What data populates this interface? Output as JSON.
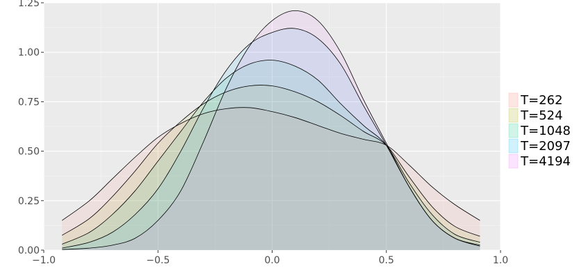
{
  "chart_data": {
    "type": "area",
    "title": "",
    "xlabel": "",
    "ylabel": "",
    "xlim": [
      -1.0,
      1.0
    ],
    "ylim": [
      0.0,
      1.25
    ],
    "x_ticks": [
      -1.0,
      -0.5,
      0.0,
      0.5,
      1.0
    ],
    "x_tick_labels": [
      "−1.0",
      "−0.5",
      "0.0",
      "0.5",
      "1.0"
    ],
    "y_ticks": [
      0.0,
      0.25,
      0.5,
      0.75,
      1.0,
      1.25
    ],
    "y_tick_labels": [
      "0.00",
      "0.25",
      "0.50",
      "0.75",
      "1.00",
      "1.25"
    ],
    "grid": true,
    "legend_position": "right",
    "x": [
      -0.92,
      -0.8,
      -0.7,
      -0.6,
      -0.5,
      -0.4,
      -0.3,
      -0.2,
      -0.1,
      0.0,
      0.1,
      0.2,
      0.3,
      0.4,
      0.5,
      0.6,
      0.7,
      0.8,
      0.91
    ],
    "series": [
      {
        "name": "T=262",
        "color": "#F8766D",
        "values": [
          0.15,
          0.25,
          0.36,
          0.47,
          0.57,
          0.64,
          0.69,
          0.715,
          0.72,
          0.7,
          0.67,
          0.63,
          0.59,
          0.56,
          0.53,
          0.43,
          0.32,
          0.23,
          0.15
        ]
      },
      {
        "name": "T=524",
        "color": "#A3A500",
        "values": [
          0.075,
          0.16,
          0.27,
          0.4,
          0.54,
          0.65,
          0.74,
          0.8,
          0.83,
          0.83,
          0.8,
          0.75,
          0.68,
          0.6,
          0.53,
          0.37,
          0.22,
          0.12,
          0.07
        ]
      },
      {
        "name": "T=1048",
        "color": "#00BF7D",
        "values": [
          0.03,
          0.09,
          0.18,
          0.3,
          0.45,
          0.6,
          0.75,
          0.87,
          0.94,
          0.96,
          0.93,
          0.86,
          0.74,
          0.63,
          0.53,
          0.34,
          0.18,
          0.08,
          0.04
        ]
      },
      {
        "name": "T=2097",
        "color": "#00B0F6",
        "values": [
          0.01,
          0.04,
          0.09,
          0.18,
          0.31,
          0.5,
          0.72,
          0.91,
          1.04,
          1.1,
          1.12,
          1.07,
          0.94,
          0.73,
          0.53,
          0.32,
          0.15,
          0.06,
          0.025
        ]
      },
      {
        "name": "T=4194",
        "color": "#E76BF3",
        "values": [
          0.003,
          0.01,
          0.025,
          0.06,
          0.15,
          0.3,
          0.55,
          0.82,
          1.03,
          1.16,
          1.21,
          1.16,
          1.0,
          0.76,
          0.54,
          0.32,
          0.15,
          0.06,
          0.02
        ]
      }
    ]
  }
}
